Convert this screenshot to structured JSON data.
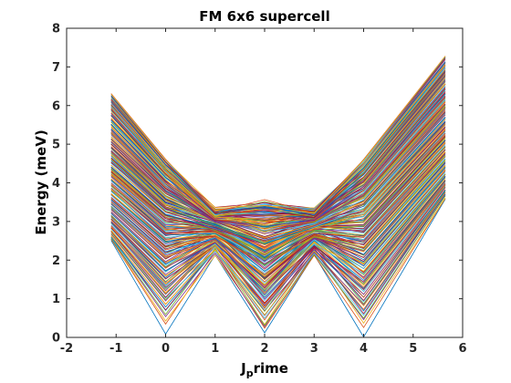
{
  "chart_data": {
    "type": "line",
    "title": "FM 6x6 supercell",
    "xlabel_main": "J",
    "xlabel_sub": "p",
    "xlabel_tail": "rime",
    "ylabel": "Energy (meV)",
    "xlim": [
      -2,
      6
    ],
    "ylim": [
      0,
      8
    ],
    "xticks": [
      -2,
      -1,
      0,
      1,
      2,
      3,
      4,
      5,
      6
    ],
    "yticks": [
      0,
      1,
      2,
      3,
      4,
      5,
      6,
      7,
      8
    ],
    "grid": false,
    "legend": "none",
    "n_bands": 220,
    "x": [
      -1.1,
      0,
      1,
      2,
      3,
      4,
      5.65
    ],
    "bands_bottom": [
      2.5,
      0.1,
      2.1,
      0.0,
      2.1,
      0.0,
      3.6
    ],
    "bands_top": [
      6.3,
      4.6,
      3.3,
      3.5,
      3.3,
      4.6,
      7.3
    ],
    "colors": [
      "#0072BD",
      "#D95319",
      "#EDB120",
      "#7E2F8E",
      "#77AC30",
      "#4DBEEE",
      "#A2142F"
    ]
  }
}
